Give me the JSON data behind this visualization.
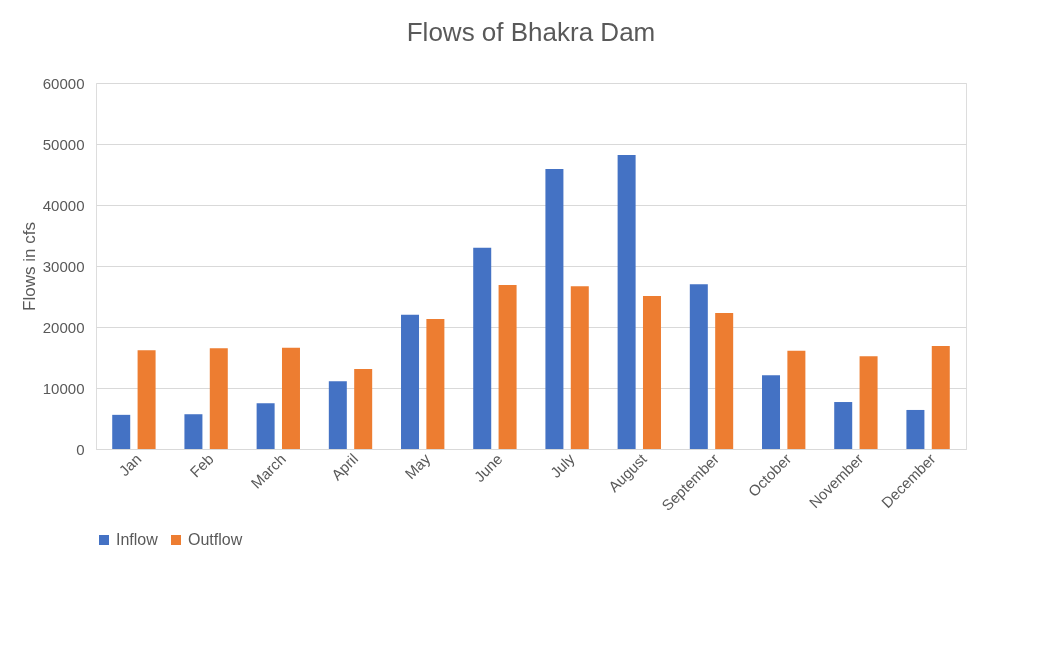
{
  "chart_data": {
    "type": "bar",
    "title": "Flows of Bhakra Dam",
    "ylabel": "Flows in cfs",
    "categories": [
      "Jan",
      "Feb",
      "March",
      "April",
      "May",
      "June",
      "July",
      "August",
      "September",
      "October",
      "November",
      "December"
    ],
    "series": [
      {
        "name": "Inflow",
        "color": "#4472c4",
        "values": [
          5600,
          5700,
          7500,
          11100,
          22000,
          33000,
          45900,
          48200,
          27000,
          12100,
          7700,
          6400
        ]
      },
      {
        "name": "Outflow",
        "color": "#ed7d31",
        "values": [
          16200,
          16500,
          16600,
          13100,
          21300,
          26900,
          26700,
          25100,
          22300,
          16100,
          15200,
          16900
        ]
      }
    ],
    "ylim": [
      0,
      60000
    ],
    "yticks": [
      0,
      10000,
      20000,
      30000,
      40000,
      50000,
      60000
    ],
    "grid": "y",
    "legend": "bottom"
  }
}
